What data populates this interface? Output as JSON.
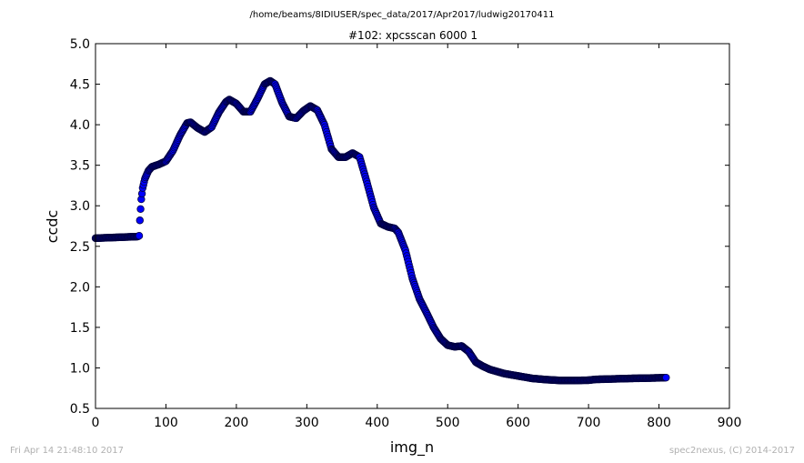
{
  "header": {
    "path": "/home/beams/8IDIUSER/spec_data/2017/Apr2017/ludwig20170411"
  },
  "footer": {
    "timestamp": "Fri Apr 14 21:48:10 2017",
    "credit": "spec2nexus, (C) 2014-2017"
  },
  "colors": {
    "marker_fill": "#0000ff",
    "marker_edge": "#000040",
    "axes": "#000000",
    "footer_text": "#b0b0b0"
  },
  "chart_data": {
    "type": "scatter",
    "title": "#102: xpcsscan 6000 1",
    "xlabel": "img_n",
    "ylabel": "ccdc",
    "xlim": [
      0,
      900
    ],
    "ylim": [
      0.5,
      5.0
    ],
    "xticks": [
      0,
      100,
      200,
      300,
      400,
      500,
      600,
      700,
      800,
      900
    ],
    "yticks": [
      0.5,
      1.0,
      1.5,
      2.0,
      2.5,
      3.0,
      3.5,
      4.0,
      4.5,
      5.0
    ],
    "grid": false,
    "legend": "none",
    "x_step": 1,
    "x_range": [
      0,
      810
    ],
    "y_profile": [
      [
        0,
        2.6
      ],
      [
        30,
        2.61
      ],
      [
        60,
        2.62
      ],
      [
        62,
        2.63
      ],
      [
        63,
        2.82
      ],
      [
        64,
        2.96
      ],
      [
        65,
        3.08
      ],
      [
        67,
        3.22
      ],
      [
        70,
        3.33
      ],
      [
        75,
        3.43
      ],
      [
        80,
        3.48
      ],
      [
        90,
        3.51
      ],
      [
        100,
        3.55
      ],
      [
        110,
        3.68
      ],
      [
        120,
        3.87
      ],
      [
        130,
        4.02
      ],
      [
        135,
        4.03
      ],
      [
        145,
        3.96
      ],
      [
        155,
        3.91
      ],
      [
        165,
        3.97
      ],
      [
        175,
        4.15
      ],
      [
        185,
        4.28
      ],
      [
        190,
        4.31
      ],
      [
        200,
        4.26
      ],
      [
        210,
        4.16
      ],
      [
        220,
        4.16
      ],
      [
        230,
        4.32
      ],
      [
        240,
        4.5
      ],
      [
        248,
        4.54
      ],
      [
        255,
        4.5
      ],
      [
        265,
        4.27
      ],
      [
        275,
        4.1
      ],
      [
        285,
        4.08
      ],
      [
        295,
        4.17
      ],
      [
        305,
        4.23
      ],
      [
        315,
        4.18
      ],
      [
        325,
        4.0
      ],
      [
        335,
        3.7
      ],
      [
        345,
        3.6
      ],
      [
        355,
        3.6
      ],
      [
        365,
        3.65
      ],
      [
        375,
        3.6
      ],
      [
        385,
        3.3
      ],
      [
        395,
        2.98
      ],
      [
        405,
        2.78
      ],
      [
        415,
        2.74
      ],
      [
        425,
        2.72
      ],
      [
        430,
        2.67
      ],
      [
        440,
        2.45
      ],
      [
        450,
        2.1
      ],
      [
        460,
        1.85
      ],
      [
        470,
        1.68
      ],
      [
        480,
        1.5
      ],
      [
        490,
        1.36
      ],
      [
        500,
        1.28
      ],
      [
        510,
        1.26
      ],
      [
        520,
        1.27
      ],
      [
        530,
        1.2
      ],
      [
        540,
        1.07
      ],
      [
        550,
        1.02
      ],
      [
        560,
        0.98
      ],
      [
        580,
        0.93
      ],
      [
        600,
        0.9
      ],
      [
        620,
        0.87
      ],
      [
        640,
        0.855
      ],
      [
        660,
        0.845
      ],
      [
        680,
        0.845
      ],
      [
        700,
        0.848
      ],
      [
        710,
        0.858
      ],
      [
        720,
        0.86
      ],
      [
        740,
        0.865
      ],
      [
        760,
        0.87
      ],
      [
        780,
        0.873
      ],
      [
        800,
        0.877
      ],
      [
        810,
        0.88
      ]
    ]
  }
}
